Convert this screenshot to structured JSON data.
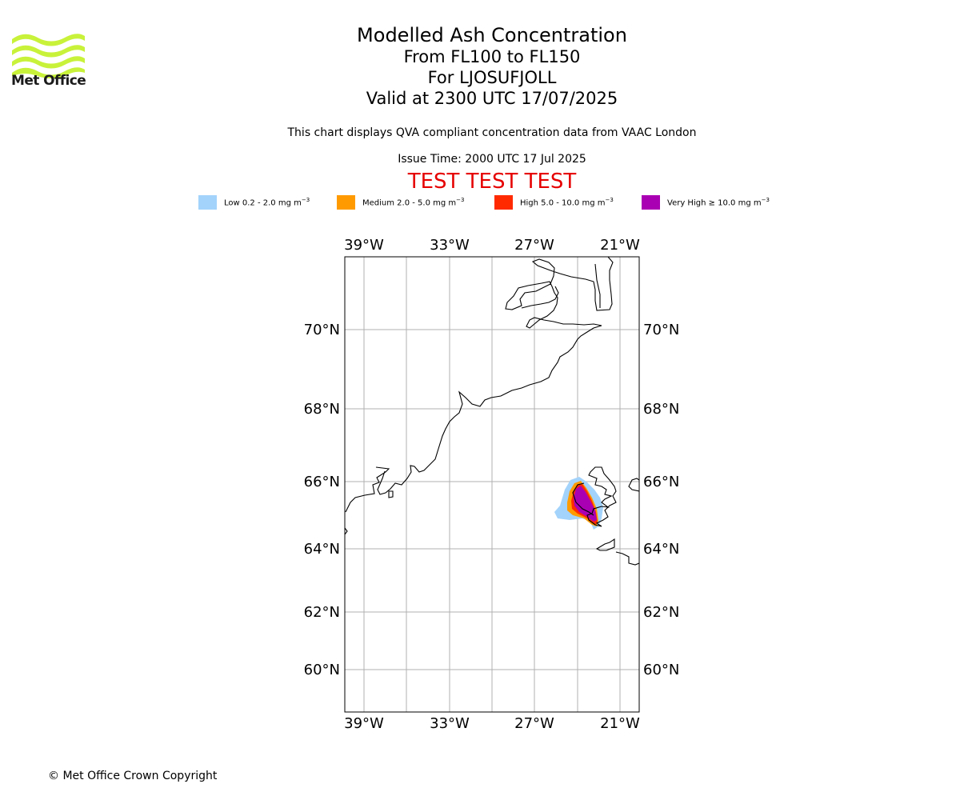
{
  "logo": {
    "text": "Met Office",
    "color": "#c8f23a"
  },
  "header": {
    "title": "Modelled Ash Concentration",
    "levels": "From FL100 to FL150",
    "location": "For LJOSUFJOLL",
    "valid": "Valid at 2300 UTC 17/07/2025",
    "description": "This chart displays QVA compliant concentration data from VAAC London",
    "issue_time": "Issue Time: 2000 UTC 17 Jul 2025",
    "test_banner": "TEST TEST TEST"
  },
  "legend": [
    {
      "label": "Low 0.2 - 2.0 mg m",
      "color": "#a3d3fb"
    },
    {
      "label": "Medium 2.0 - 5.0 mg m",
      "color": "#ff9b00"
    },
    {
      "label": "High 5.0 - 10.0 mg m",
      "color": "#ff2a00"
    },
    {
      "label": "Very High ≥ 10.0 mg m",
      "color": "#aa00b3"
    }
  ],
  "legend_unit_exponent": "−3",
  "map": {
    "lon_ticks": [
      "39°W",
      "33°W",
      "27°W",
      "21°W"
    ],
    "lat_ticks": [
      "70°N",
      "68°N",
      "66°N",
      "64°N",
      "62°N",
      "60°N"
    ],
    "extent_lon": [
      -40.4,
      -19.7
    ],
    "extent_lat": [
      58.9,
      72.2
    ],
    "gridlines": true,
    "coastline_color": "#000000",
    "grid_color": "#b0b0b0"
  },
  "footer": {
    "copyright": "© Met Office Crown Copyright"
  }
}
